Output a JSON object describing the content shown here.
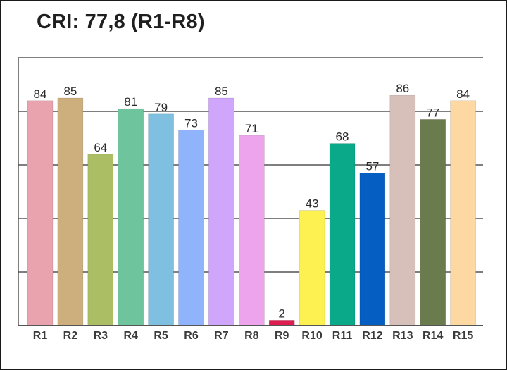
{
  "title": "CRI: 77,8 (R1-R8)",
  "chart_data": {
    "type": "bar",
    "title": "CRI: 77,8 (R1-R8)",
    "xlabel": "",
    "ylabel": "",
    "categories": [
      "R1",
      "R2",
      "R3",
      "R4",
      "R5",
      "R6",
      "R7",
      "R8",
      "R9",
      "R10",
      "R11",
      "R12",
      "R13",
      "R14",
      "R15"
    ],
    "values": [
      84,
      85,
      64,
      81,
      79,
      73,
      85,
      71,
      2,
      43,
      68,
      57,
      86,
      77,
      84
    ],
    "colors": [
      "#e8a3ae",
      "#cdaf7e",
      "#abbe63",
      "#6ec49c",
      "#7fc0e0",
      "#8fb4fb",
      "#cfa6fb",
      "#eea4ed",
      "#dd1d4f",
      "#fdf152",
      "#0aa98a",
      "#055ec2",
      "#d7bfba",
      "#6a7b4d",
      "#fed8a2"
    ],
    "ylim": [
      0,
      100
    ],
    "yticks": [
      0,
      20,
      40,
      60,
      80,
      100
    ],
    "grid": true,
    "legend": "none",
    "data_labels": true
  }
}
